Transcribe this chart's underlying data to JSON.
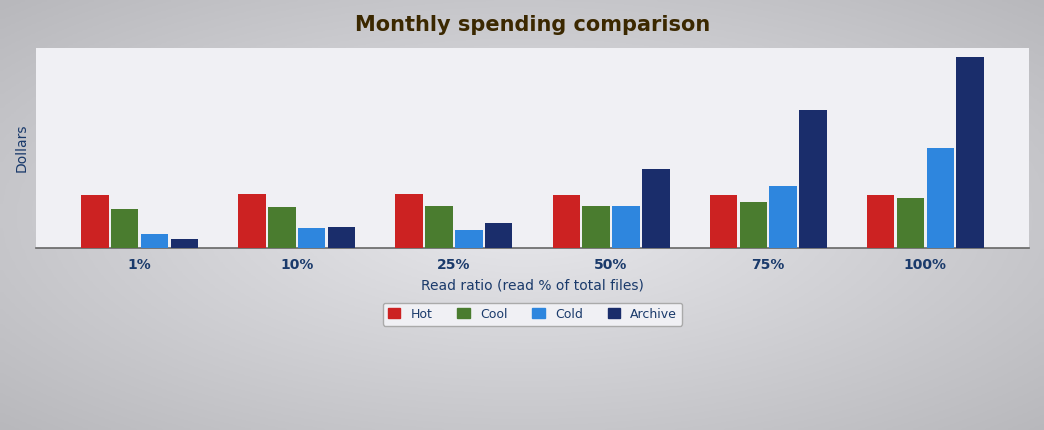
{
  "title": "Monthly spending comparison",
  "xlabel": "Read ratio (read % of total files)",
  "ylabel": "Dollars",
  "categories": [
    "1%",
    "10%",
    "25%",
    "50%",
    "75%",
    "100%"
  ],
  "series": {
    "Hot": [
      110,
      112,
      113,
      111,
      110,
      110
    ],
    "Cool": [
      82,
      86,
      88,
      88,
      96,
      105
    ],
    "Cold": [
      28,
      42,
      38,
      88,
      130,
      210
    ],
    "Archive": [
      18,
      44,
      52,
      165,
      290,
      400
    ]
  },
  "colors": {
    "Hot": "#cc2222",
    "Cool": "#4a7c2f",
    "Cold": "#2e86de",
    "Archive": "#1a2d6b"
  },
  "bg_outer": "#c0c0c4",
  "bg_inner": "#e8e8ec",
  "plot_bg": "#f0f0f4",
  "title_color": "#3b2800",
  "axis_label_color": "#1a3a6b",
  "tick_label_color": "#1a3a6b",
  "title_fontsize": 15,
  "label_fontsize": 10,
  "legend_fontsize": 9,
  "bar_width": 0.19,
  "ylim": [
    0,
    420
  ]
}
